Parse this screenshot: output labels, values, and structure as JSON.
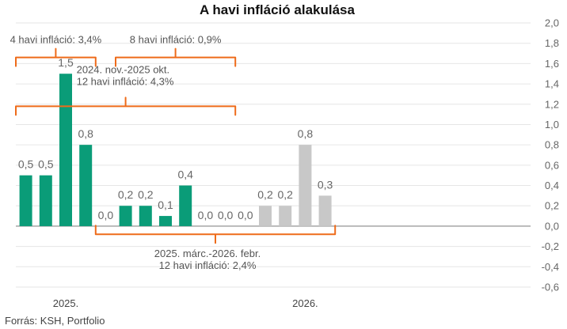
{
  "title": "A havi infláció alakulása",
  "source": "Forrás: KSH, Portfolio",
  "colors": {
    "bar_actual": "#0a9c78",
    "bar_forecast": "#c8c8c8",
    "bracket": "#ee6b1a",
    "grid": "#e6e6e6",
    "zero_line": "#888888",
    "label": "#666666"
  },
  "chart_data": {
    "type": "bar",
    "title": "A havi infláció alakulása",
    "xlabel": "",
    "ylabel": "",
    "ylim": [
      -0.6,
      2.0
    ],
    "yticks": [
      "2,0",
      "1,8",
      "1,6",
      "1,4",
      "1,2",
      "1,0",
      "0,8",
      "0,6",
      "0,4",
      "0,2",
      "0,0",
      "-0,2",
      "-0,4",
      "-0,6"
    ],
    "ytick_values": [
      2.0,
      1.8,
      1.6,
      1.4,
      1.2,
      1.0,
      0.8,
      0.6,
      0.4,
      0.2,
      0.0,
      -0.2,
      -0.4,
      -0.6
    ],
    "grid": true,
    "values": [
      0.5,
      0.5,
      1.5,
      0.8,
      0.0,
      0.2,
      0.2,
      0.1,
      0.4,
      0.0,
      0.0,
      0.0,
      0.2,
      0.2,
      0.8,
      0.3
    ],
    "value_labels": [
      "0,5",
      "0,5",
      "1,5",
      "0,8",
      "0,0",
      "0,2",
      "0,2",
      "0,1",
      "0,4",
      "0,0",
      "0,0",
      "0,0",
      "0,2",
      "0,2",
      "0,8",
      "0,3"
    ],
    "series_kind": [
      "actual",
      "actual",
      "actual",
      "actual",
      "actual",
      "actual",
      "actual",
      "actual",
      "actual",
      "actual",
      "actual",
      "actual",
      "forecast",
      "forecast",
      "forecast",
      "forecast"
    ],
    "year_labels": [
      {
        "label": "2025.",
        "index": 2
      },
      {
        "label": "2026.",
        "index": 14
      }
    ],
    "annotations": [
      {
        "lines": [
          "4 havi infláció: 3,4%"
        ],
        "from_index": 0,
        "to_index": 4,
        "level": 1.66,
        "side": "above"
      },
      {
        "lines": [
          "8 havi infláció: 0,9%"
        ],
        "from_index": 5,
        "to_index": 11,
        "level": 1.66,
        "side": "above"
      },
      {
        "lines": [
          "2024. nov.-2025 okt.",
          "12 havi infláció: 4,3%"
        ],
        "from_index": 0,
        "to_index": 11,
        "level": 1.18,
        "side": "above"
      },
      {
        "lines": [
          "2025. márc.-2026. febr.",
          "12 havi infláció: 2,4%"
        ],
        "from_index": 4,
        "to_index": 16,
        "level": -0.08,
        "side": "below"
      }
    ]
  }
}
